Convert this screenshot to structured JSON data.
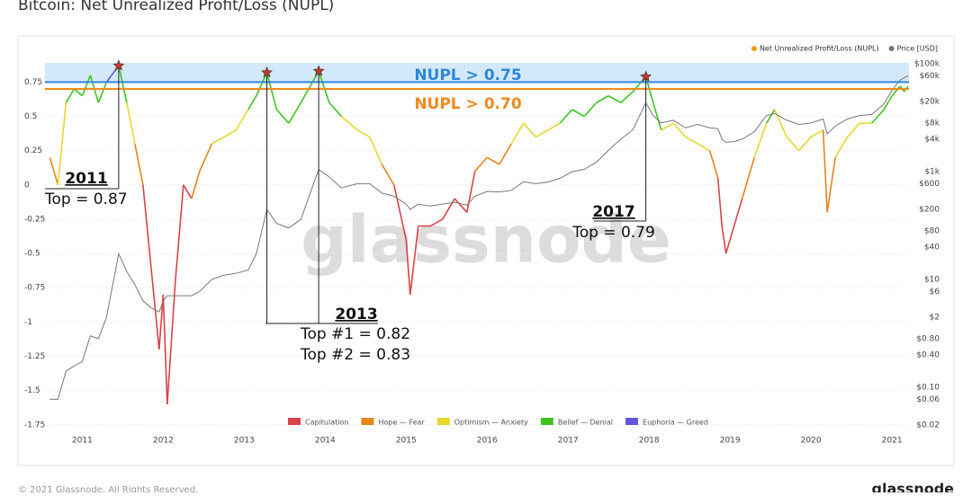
{
  "chart_data": {
    "type": "line",
    "title": "Bitcoin: Net Unrealized Profit/Loss (NUPL)",
    "watermark": "glassnode",
    "xlim": [
      2010.54,
      2021.21
    ],
    "xticks": [
      2011,
      2012,
      2013,
      2014,
      2015,
      2016,
      2017,
      2018,
      2019,
      2020,
      2021
    ],
    "ylim": [
      -1.83,
      0.89
    ],
    "yticks": [
      0.75,
      0.5,
      0.25,
      0,
      -0.25,
      -0.5,
      -0.75,
      -1,
      -1.25,
      -1.5,
      -1.75
    ],
    "y2scale": "log",
    "y2lim": [
      0.0126,
      104000
    ],
    "y2ticks": [
      {
        "value": 100000,
        "label": "$100k"
      },
      {
        "value": 60000,
        "label": "$60k"
      },
      {
        "value": 20000,
        "label": "$20k"
      },
      {
        "value": 8000,
        "label": "$8k"
      },
      {
        "value": 4000,
        "label": "$4k"
      },
      {
        "value": 1000,
        "label": "$1k"
      },
      {
        "value": 600,
        "label": "$600"
      },
      {
        "value": 200,
        "label": "$200"
      },
      {
        "value": 80,
        "label": "$80"
      },
      {
        "value": 40,
        "label": "$40"
      },
      {
        "value": 10,
        "label": "$10"
      },
      {
        "value": 6,
        "label": "$6"
      },
      {
        "value": 2,
        "label": "$2"
      },
      {
        "value": 0.8,
        "label": "$0.80"
      },
      {
        "value": 0.4,
        "label": "$0.40"
      },
      {
        "value": 0.1,
        "label": "$0.10"
      },
      {
        "value": 0.06,
        "label": "$0.06"
      },
      {
        "value": 0.02,
        "label": "$0.02"
      }
    ],
    "grid": true,
    "x": [
      2010.6,
      2010.7,
      2010.8,
      2010.9,
      2011.0,
      2011.1,
      2011.2,
      2011.3,
      2011.45,
      2011.55,
      2011.65,
      2011.75,
      2011.85,
      2011.95,
      2012.0,
      2012.05,
      2012.15,
      2012.25,
      2012.35,
      2012.45,
      2012.6,
      2012.75,
      2012.9,
      2013.05,
      2013.15,
      2013.28,
      2013.4,
      2013.55,
      2013.7,
      2013.92,
      2014.05,
      2014.2,
      2014.4,
      2014.55,
      2014.7,
      2014.85,
      2015.0,
      2015.05,
      2015.15,
      2015.3,
      2015.45,
      2015.6,
      2015.75,
      2015.85,
      2016.0,
      2016.15,
      2016.3,
      2016.45,
      2016.6,
      2016.75,
      2016.9,
      2017.05,
      2017.2,
      2017.35,
      2017.5,
      2017.65,
      2017.8,
      2017.96,
      2018.05,
      2018.15,
      2018.3,
      2018.45,
      2018.6,
      2018.75,
      2018.85,
      2018.9,
      2018.95,
      2019.05,
      2019.15,
      2019.3,
      2019.45,
      2019.55,
      2019.7,
      2019.85,
      2020.0,
      2020.15,
      2020.2,
      2020.3,
      2020.45,
      2020.6,
      2020.75,
      2020.9,
      2021.0,
      2021.1,
      2021.15,
      2021.2
    ],
    "series": [
      {
        "name": "Net Unrealized Profit/Loss (NUPL)",
        "color": "#f39c12",
        "values": [
          0.2,
          0.0,
          0.6,
          0.7,
          0.65,
          0.8,
          0.6,
          0.75,
          0.87,
          0.6,
          0.3,
          0.0,
          -0.6,
          -1.2,
          -0.8,
          -1.6,
          -0.7,
          0.0,
          -0.1,
          0.1,
          0.3,
          0.35,
          0.4,
          0.55,
          0.65,
          0.82,
          0.55,
          0.45,
          0.6,
          0.83,
          0.6,
          0.5,
          0.4,
          0.35,
          0.15,
          0.0,
          -0.4,
          -0.8,
          -0.3,
          -0.3,
          -0.25,
          -0.1,
          -0.2,
          0.1,
          0.2,
          0.15,
          0.3,
          0.45,
          0.35,
          0.4,
          0.45,
          0.55,
          0.5,
          0.6,
          0.65,
          0.6,
          0.68,
          0.79,
          0.6,
          0.4,
          0.45,
          0.35,
          0.3,
          0.25,
          0.05,
          -0.3,
          -0.5,
          -0.3,
          -0.1,
          0.2,
          0.45,
          0.55,
          0.35,
          0.25,
          0.35,
          0.4,
          -0.2,
          0.2,
          0.35,
          0.45,
          0.45,
          0.55,
          0.65,
          0.72,
          0.68,
          0.72
        ]
      },
      {
        "name": "Price [USD]",
        "color": "#777777",
        "axis": "y2",
        "values": [
          0.06,
          0.06,
          0.2,
          0.25,
          0.3,
          0.9,
          0.8,
          2,
          30,
          14,
          8,
          4,
          3,
          2.5,
          4,
          5,
          5,
          5,
          5,
          6,
          10,
          12,
          13,
          15,
          30,
          200,
          110,
          90,
          130,
          1100,
          800,
          500,
          600,
          600,
          400,
          350,
          250,
          200,
          250,
          230,
          250,
          270,
          240,
          350,
          430,
          420,
          450,
          650,
          600,
          640,
          750,
          1000,
          1100,
          1500,
          2500,
          4000,
          6000,
          19000,
          11000,
          8000,
          9000,
          6500,
          7500,
          6500,
          6300,
          4000,
          3500,
          3600,
          4000,
          5500,
          11000,
          12000,
          9000,
          7500,
          8000,
          9500,
          5000,
          7000,
          9500,
          11000,
          11500,
          18000,
          32000,
          50000,
          55000,
          60000
        ]
      }
    ],
    "zones": [
      {
        "name": "Capitulation",
        "color": "#d9434a"
      },
      {
        "name": "Hope — Fear",
        "color": "#e8841a",
        "from": 0
      },
      {
        "name": "Optimism — Anxiety",
        "color": "#e6d92a",
        "from": 0.25
      },
      {
        "name": "Belief — Denial",
        "color": "#3ec41f",
        "from": 0.5
      },
      {
        "name": "Euphoria — Greed",
        "color": "#6655e0",
        "from": 0.75
      }
    ],
    "band_color": "#d3e9fb",
    "thresholds": [
      {
        "label": "NUPL > 0.75",
        "value": 0.75,
        "color": "#2f86d9"
      },
      {
        "label": "NUPL > 0.70",
        "value": 0.7,
        "color": "#f08a1c"
      }
    ],
    "tops": [
      {
        "year": "2011",
        "text": "Top = 0.87",
        "x": 2011.45,
        "value": 0.87
      },
      {
        "year": "2013",
        "text": "Top #1 = 0.82",
        "x": 2013.28,
        "value": 0.82
      },
      {
        "text": "Top #2 = 0.83",
        "x": 2013.92,
        "value": 0.83
      },
      {
        "year": "2017",
        "text": "Top = 0.79",
        "x": 2017.96,
        "value": 0.79
      }
    ]
  },
  "footer": {
    "copyright": "© 2021 Glassnode. All Rights Reserved.",
    "logo": "glassnode"
  }
}
